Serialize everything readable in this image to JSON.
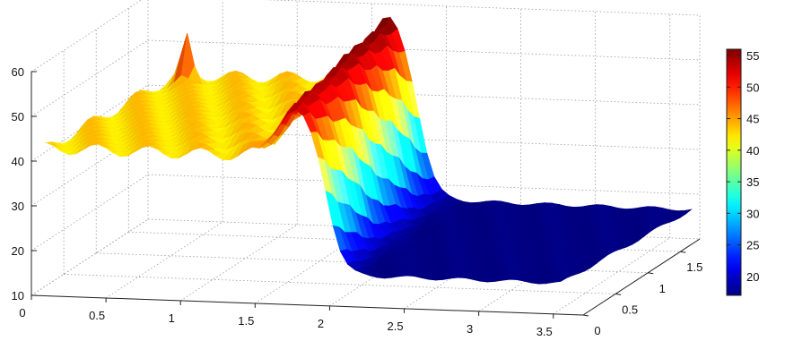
{
  "chart_data": {
    "type": "surface",
    "title": "",
    "xlabel": "",
    "ylabel": "",
    "zlabel": "",
    "xlim": [
      0,
      3.7
    ],
    "ylim": [
      0,
      1.8
    ],
    "zlim": [
      10,
      60
    ],
    "x_ticks": [
      "0",
      "0.5",
      "1",
      "1.5",
      "2",
      "2.5",
      "3",
      "3.5"
    ],
    "y_ticks": [
      "0",
      "0.5",
      "1",
      "1.5"
    ],
    "z_ticks": [
      "10",
      "20",
      "30",
      "40",
      "50",
      "60"
    ],
    "grid": true,
    "colormap": "jet",
    "colorbar": {
      "range": [
        17,
        56
      ],
      "ticks": [
        "20",
        "25",
        "30",
        "35",
        "40",
        "45",
        "50",
        "55"
      ],
      "placement": "right"
    },
    "surface": {
      "plateau_low_x_value": 43,
      "ridge_center_x": 1.95,
      "ridge_peak_value": 56,
      "plateau_high_x_value": 17,
      "spike": {
        "x": 0.35,
        "y": 1.6,
        "value": 53
      }
    }
  }
}
